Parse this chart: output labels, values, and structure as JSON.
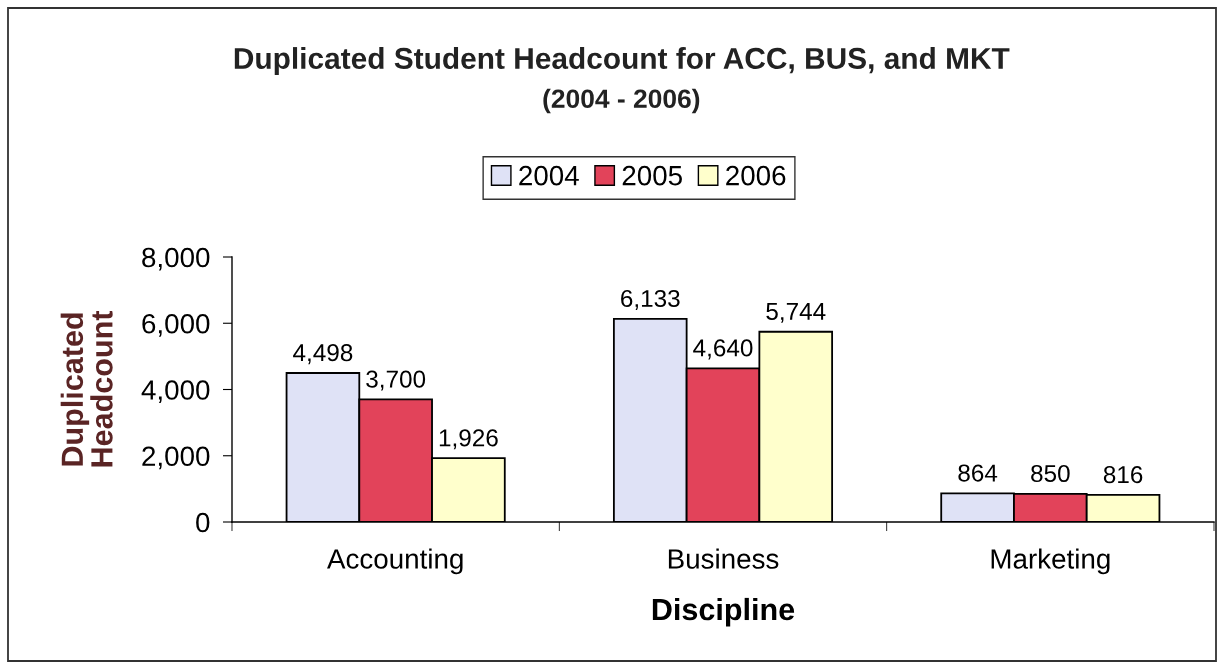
{
  "chart_data": {
    "type": "bar",
    "title": "Duplicated Student Headcount for ACC, BUS, and MKT",
    "subtitle": "(2004 - 2006)",
    "xlabel": "Discipline",
    "ylabel": "Duplicated\nHeadcount",
    "categories": [
      "Accounting",
      "Business",
      "Marketing"
    ],
    "series": [
      {
        "name": "2004",
        "color": "#dfe2f6",
        "values": [
          4498,
          6133,
          864
        ],
        "value_labels": [
          "4,498",
          "6,133",
          "864"
        ]
      },
      {
        "name": "2005",
        "color": "#e2435a",
        "values": [
          3700,
          4640,
          850
        ],
        "value_labels": [
          "3,700",
          "4,640",
          "850"
        ]
      },
      {
        "name": "2006",
        "color": "#ffffcc",
        "values": [
          1926,
          5744,
          816
        ],
        "value_labels": [
          "1,926",
          "5,744",
          "816"
        ]
      }
    ],
    "ylim": [
      0,
      8000
    ],
    "yticks": [
      0,
      {
        "value": 2000,
        "label": "2,000"
      },
      {
        "value": 4000,
        "label": "4,000"
      },
      {
        "value": 6000,
        "label": "6,000"
      },
      {
        "value": 8000,
        "label": "8,000"
      }
    ],
    "legend": "top"
  }
}
